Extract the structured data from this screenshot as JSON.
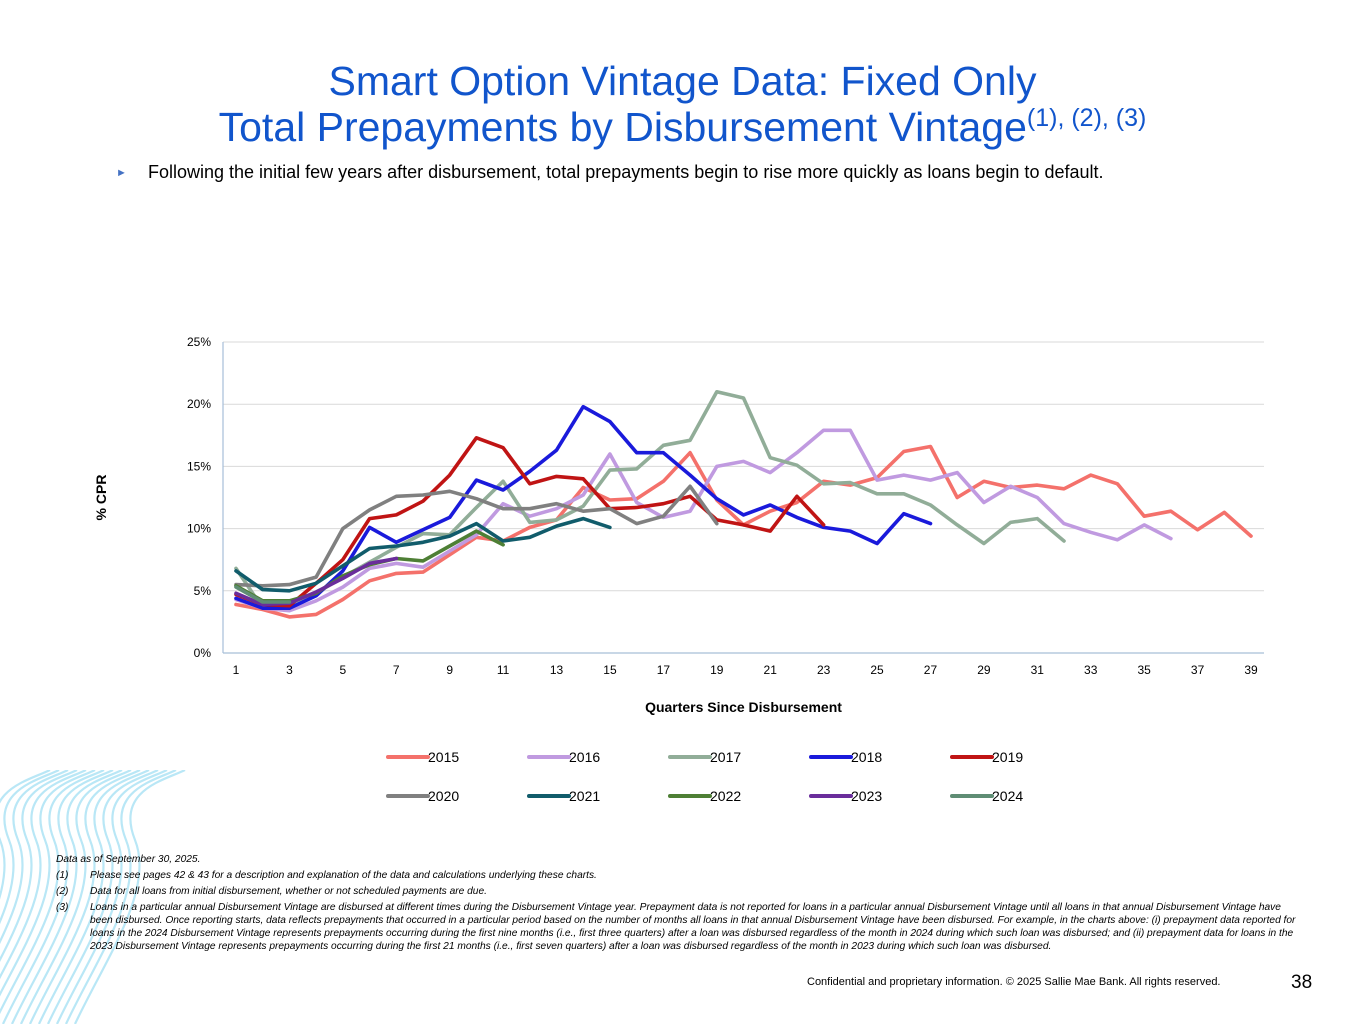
{
  "title": {
    "line1": "Smart Option Vintage Data: Fixed Only",
    "line2": "Total Prepayments by Disbursement Vintage",
    "superscript": "(1), (2), (3)"
  },
  "bullet": {
    "marker": "►",
    "text": "Following the initial few years after disbursement, total prepayments begin to rise more quickly as loans begin to default."
  },
  "chart_data": {
    "type": "line",
    "title": "",
    "xlabel": "Quarters Since Disbursement",
    "ylabel": "% CPR",
    "x_ticks": [
      1,
      3,
      5,
      7,
      9,
      11,
      13,
      15,
      17,
      19,
      21,
      23,
      25,
      27,
      29,
      31,
      33,
      35,
      37,
      39
    ],
    "y_ticks": [
      0,
      5,
      10,
      15,
      20,
      25
    ],
    "ylim": [
      0,
      25
    ],
    "xlim": [
      1,
      39
    ],
    "y_unit": "%",
    "grid": "horizontal",
    "legend_position": "bottom",
    "series": [
      {
        "name": "2015",
        "color": "#f4716b",
        "x_start": 1,
        "values": [
          3.9,
          3.5,
          2.9,
          3.1,
          4.3,
          5.8,
          6.4,
          6.5,
          7.9,
          9.3,
          9.0,
          10.1,
          10.7,
          13.3,
          12.3,
          12.4,
          13.8,
          16.1,
          12.3,
          10.3,
          11.4,
          12.1,
          13.8,
          13.5,
          14.1,
          16.2,
          16.6,
          12.5,
          13.8,
          13.3,
          13.5,
          13.2,
          14.3,
          13.6,
          11.0,
          11.4,
          9.9,
          11.3,
          9.4
        ]
      },
      {
        "name": "2016",
        "color": "#c09ae0",
        "x_start": 1,
        "values": [
          4.3,
          3.6,
          3.4,
          4.2,
          5.3,
          6.8,
          7.2,
          6.9,
          8.2,
          9.5,
          12.0,
          11.0,
          11.6,
          12.7,
          16.0,
          12.1,
          10.9,
          11.4,
          15.0,
          15.4,
          14.5,
          16.1,
          17.9,
          17.9,
          13.9,
          14.3,
          13.9,
          14.5,
          12.1,
          13.4,
          12.5,
          10.4,
          9.7,
          9.1,
          10.3,
          9.2
        ]
      },
      {
        "name": "2017",
        "color": "#91ad98",
        "x_start": 1,
        "values": [
          6.8,
          3.6,
          3.8,
          4.8,
          6.1,
          7.3,
          8.5,
          9.6,
          9.5,
          11.7,
          13.8,
          10.5,
          10.7,
          11.8,
          14.7,
          14.8,
          16.7,
          17.1,
          21.0,
          20.5,
          15.7,
          15.1,
          13.6,
          13.7,
          12.8,
          12.8,
          11.9,
          10.3,
          8.8,
          10.5,
          10.8,
          9.0
        ]
      },
      {
        "name": "2018",
        "color": "#1a1adb",
        "x_start": 1,
        "values": [
          4.4,
          3.6,
          3.6,
          4.6,
          6.6,
          10.1,
          8.9,
          9.9,
          10.9,
          13.9,
          13.1,
          14.6,
          16.3,
          19.8,
          18.6,
          16.1,
          16.1,
          14.3,
          12.4,
          11.1,
          11.9,
          10.9,
          10.1,
          9.8,
          8.8,
          11.2,
          10.4
        ]
      },
      {
        "name": "2019",
        "color": "#c01414",
        "x_start": 1,
        "values": [
          4.7,
          3.9,
          3.8,
          5.6,
          7.5,
          10.8,
          11.1,
          12.2,
          14.3,
          17.3,
          16.5,
          13.6,
          14.2,
          14.0,
          11.6,
          11.7,
          12.0,
          12.6,
          10.7,
          10.3,
          9.8,
          12.6,
          10.3
        ]
      },
      {
        "name": "2020",
        "color": "#808080",
        "x_start": 1,
        "values": [
          5.5,
          5.4,
          5.5,
          6.1,
          10.0,
          11.5,
          12.6,
          12.7,
          13.0,
          12.4,
          11.6,
          11.6,
          12.0,
          11.4,
          11.6,
          10.4,
          11.0,
          13.4,
          10.4
        ]
      },
      {
        "name": "2021",
        "color": "#115c6b",
        "x_start": 1,
        "values": [
          6.6,
          5.1,
          5.0,
          5.6,
          7.0,
          8.4,
          8.6,
          8.9,
          9.4,
          10.4,
          9.0,
          9.3,
          10.2,
          10.8,
          10.1
        ]
      },
      {
        "name": "2022",
        "color": "#4e7f35",
        "x_start": 1,
        "values": [
          5.4,
          4.2,
          4.2,
          4.8,
          6.2,
          7.1,
          7.6,
          7.4,
          8.6,
          9.8,
          8.7
        ]
      },
      {
        "name": "2023",
        "color": "#6a2d9b",
        "x_start": 1,
        "values": [
          4.8,
          3.9,
          4.0,
          4.9,
          6.0,
          7.2,
          7.6
        ]
      },
      {
        "name": "2024",
        "color": "#5f8d74",
        "x_start": 1,
        "values": [
          5.3,
          4.1,
          4.1
        ]
      }
    ]
  },
  "footnotes": {
    "as_of": "Data as of  September 30, 2025.",
    "items": [
      {
        "key": "(1)",
        "text": "Please see pages 42 & 43 for a description and explanation of the data and calculations underlying these charts."
      },
      {
        "key": "(2)",
        "text": "Data for all loans from initial disbursement, whether or not scheduled payments are due."
      },
      {
        "key": "(3)",
        "text": "Loans in a particular annual Disbursement Vintage are disbursed at different times during the Disbursement Vintage year.  Prepayment data is not reported for loans in a particular annual Disbursement Vintage until all loans in that annual Disbursement Vintage have been disbursed.  Once reporting starts, data reflects prepayments that occurred in a particular period based on the number of months all loans in that annual Disbursement Vintage have been disbursed.  For example, in the charts above:  (i) prepayment data reported for loans in the 2024 Disbursement Vintage represents prepayments occurring during the first nine months (i.e., first three quarters) after a loan was disbursed regardless of the month in 2024 during which such loan was disbursed; and (ii) prepayment data for loans in the 2023 Disbursement Vintage represents prepayments occurring during the first 21 months (i.e., first seven quarters) after a loan was disbursed regardless of the month in 2023 during which such loan was disbursed."
      }
    ]
  },
  "footer": {
    "confidential": "Confidential and proprietary information. © 2025 Sallie Mae Bank. All rights reserved.",
    "page_number": "38"
  },
  "decoration": {
    "wave_color": "#7fd3ef"
  }
}
